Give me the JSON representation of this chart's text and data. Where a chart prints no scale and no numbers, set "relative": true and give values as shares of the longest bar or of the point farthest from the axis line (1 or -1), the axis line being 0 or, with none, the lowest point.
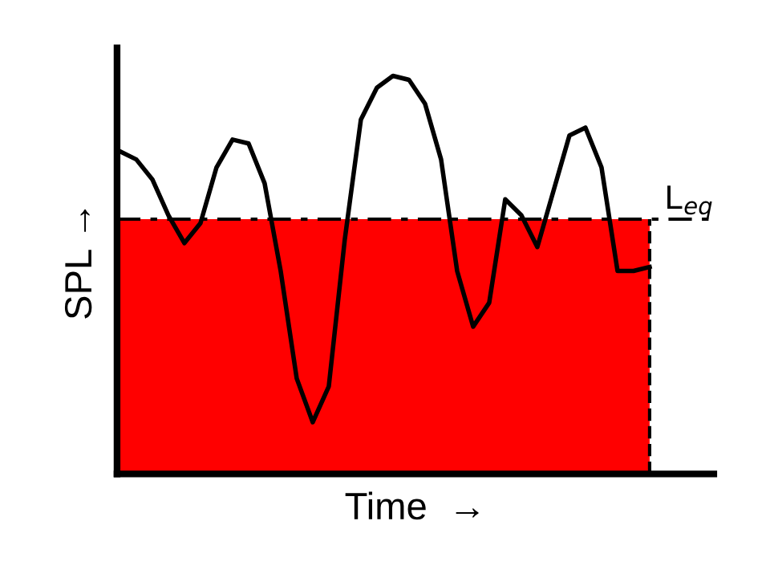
{
  "chart_data": {
    "type": "line",
    "relative": true,
    "xlabel": "Time  →",
    "ylabel": "SPL →",
    "categories": [
      null,
      null,
      null,
      null,
      null,
      null,
      null,
      null,
      null,
      null,
      null,
      null,
      null,
      null,
      null,
      null,
      null,
      null,
      null,
      null,
      null,
      null,
      null,
      null,
      null,
      null,
      null,
      null,
      null,
      null,
      null,
      null,
      null,
      null
    ],
    "series": [
      {
        "type": "area",
        "color": "#ff0000",
        "values": [
          0.64,
          0.64,
          0.64,
          0.64,
          0.64,
          0.64,
          0.64,
          0.64,
          0.64,
          0.64,
          0.64,
          0.64,
          0.64,
          0.64,
          0.64,
          0.64,
          0.64,
          0.64,
          0.64,
          0.64,
          0.64,
          0.64,
          0.64,
          0.64,
          0.64,
          0.64,
          0.64,
          0.64,
          0.64,
          0.64,
          0.64,
          0.64,
          0.64,
          0.64
        ]
      },
      {
        "color": "#000000",
        "values": [
          0.81,
          0.79,
          0.74,
          0.65,
          0.58,
          0.63,
          0.77,
          0.84,
          0.83,
          0.73,
          0.51,
          0.24,
          0.13,
          0.22,
          0.59,
          0.89,
          0.97,
          1.0,
          0.99,
          0.93,
          0.79,
          0.51,
          0.37,
          0.43,
          0.69,
          0.65,
          0.57,
          0.71,
          0.85,
          0.87,
          0.77,
          0.51,
          0.51,
          0.52
        ]
      }
    ],
    "ref_lines": [
      {
        "axis": "y",
        "value": 0.64,
        "label": "L$_{eq}$",
        "color": "#000000",
        "line_style": "dashed"
      }
    ],
    "legend": false,
    "marker": "none"
  }
}
